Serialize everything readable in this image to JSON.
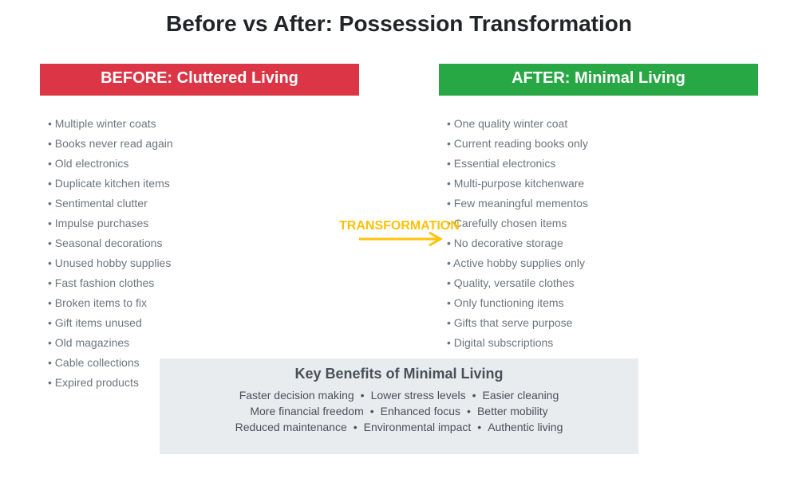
{
  "title": "Before vs After: Possession Transformation",
  "before": {
    "header": "BEFORE: Cluttered Living",
    "color": "#dc3545",
    "items": [
      "Multiple winter coats",
      "Books never read again",
      "Old electronics",
      "Duplicate kitchen items",
      "Sentimental clutter",
      "Impulse purchases",
      "Seasonal decorations",
      "Unused hobby supplies",
      "Fast fashion clothes",
      "Broken items to fix",
      "Gift items unused",
      "Old magazines",
      "Cable collections",
      "Expired products"
    ]
  },
  "after": {
    "header": "AFTER: Minimal Living",
    "color": "#28a745",
    "items": [
      "One quality winter coat",
      "Current reading books only",
      "Essential electronics",
      "Multi-purpose kitchenware",
      "Few meaningful mementos",
      "Carefully chosen items",
      "No decorative storage",
      "Active hobby supplies only",
      "Quality, versatile clothes",
      "Only functioning items",
      "Gifts that serve purpose",
      "Digital subscriptions"
    ]
  },
  "transformation": {
    "label": "TRANSFORMATION",
    "color": "#ffc107",
    "icon": "arrow-right-icon"
  },
  "benefits": {
    "title": "Key Benefits of Minimal Living",
    "rows": [
      [
        "Faster decision making",
        "Lower stress levels",
        "Easier cleaning"
      ],
      [
        "More financial freedom",
        "Enhanced focus",
        "Better mobility"
      ],
      [
        "Reduced maintenance",
        "Environmental impact",
        "Authentic living"
      ]
    ]
  }
}
